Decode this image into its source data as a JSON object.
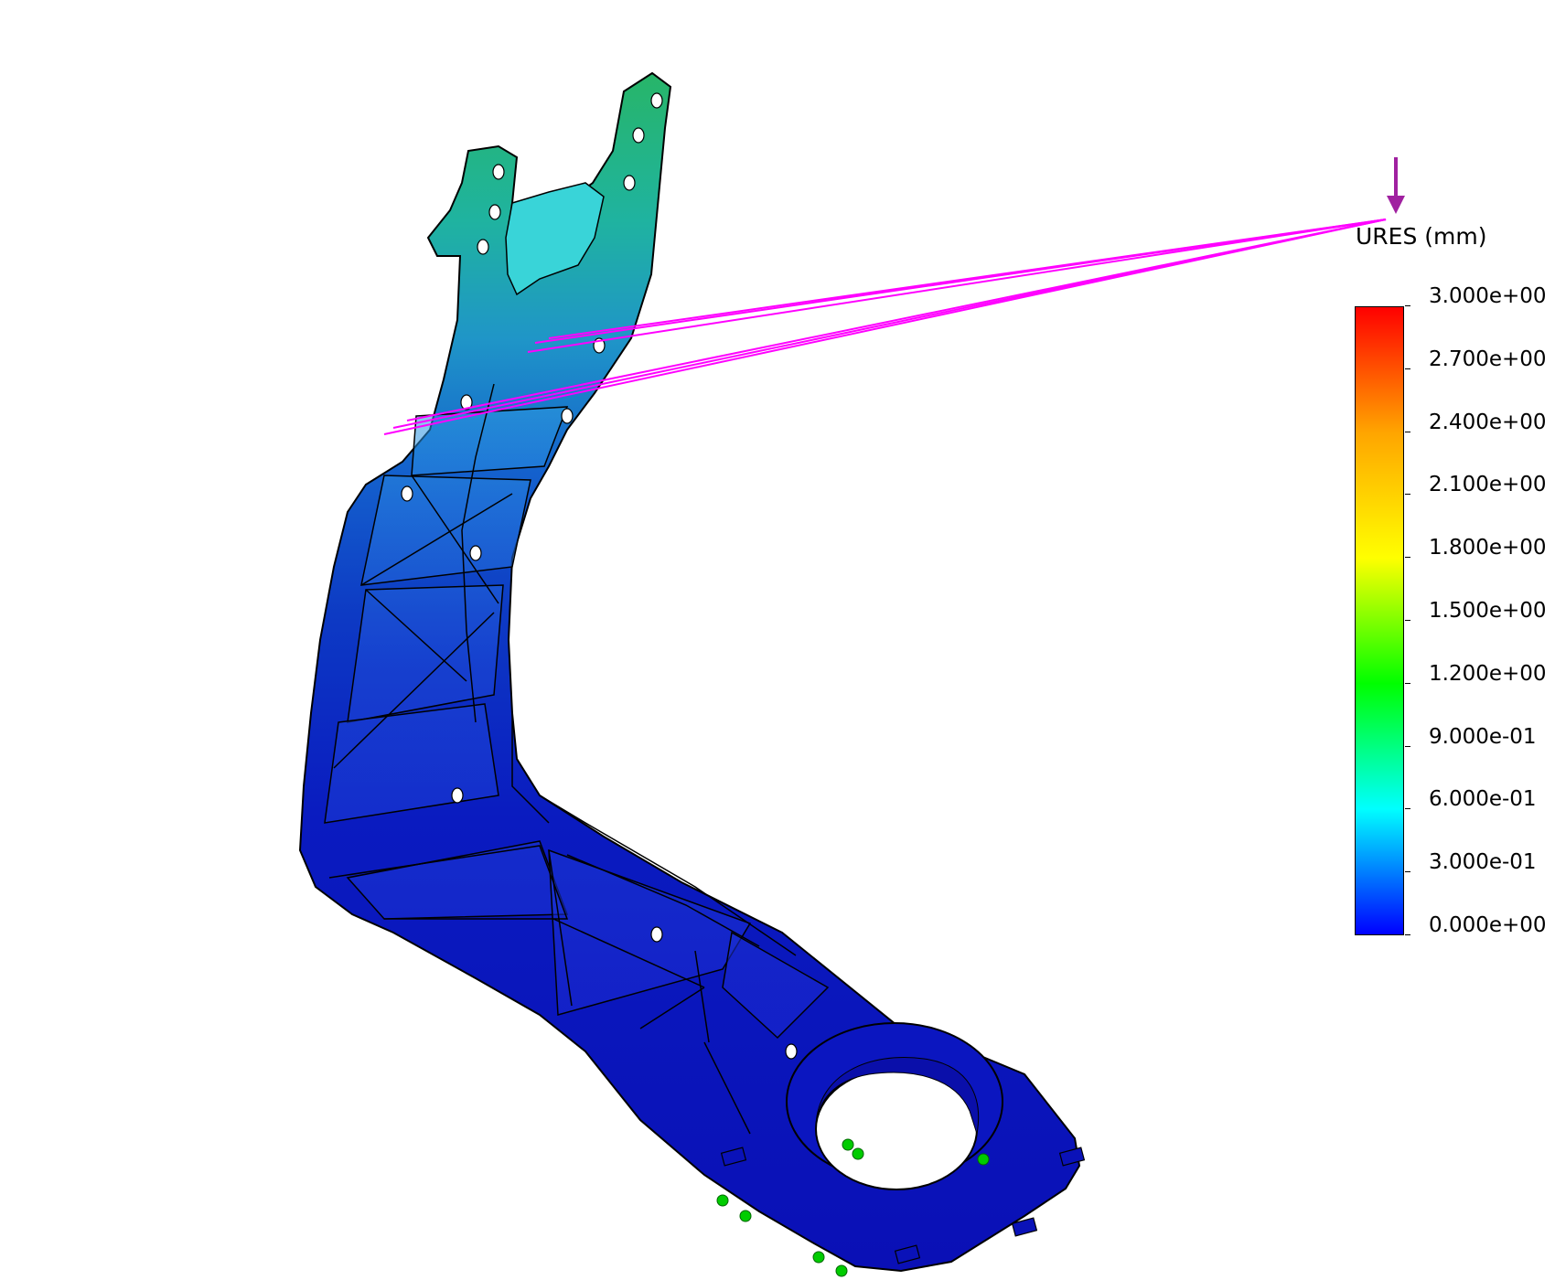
{
  "legend": {
    "title": "URES (mm)",
    "labels": [
      "3.000e+00",
      "2.700e+00",
      "2.400e+00",
      "2.100e+00",
      "1.800e+00",
      "1.500e+00",
      "1.200e+00",
      "9.000e-01",
      "6.000e-01",
      "3.000e-01",
      "0.000e+00"
    ],
    "min": 0,
    "max": 3,
    "colors": [
      "#ff0000",
      "#ffa500",
      "#ffff00",
      "#00ff00",
      "#00ffff",
      "#0000ff"
    ]
  },
  "model": {
    "description_colors": {
      "low": "#0a14c8",
      "mid": "#1a7fd0",
      "high": "#20b070"
    },
    "load_color": "#ff00ff",
    "fixture_color": "#00cc00",
    "gravity_arrow_color": "#a020a0"
  }
}
